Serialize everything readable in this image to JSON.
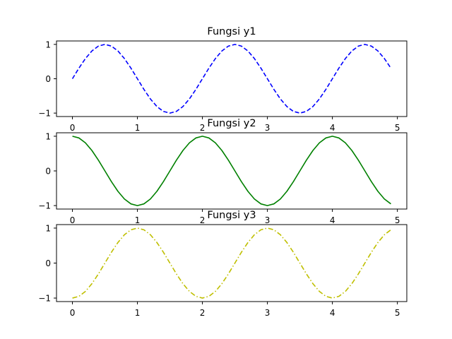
{
  "chart_data": [
    {
      "type": "line",
      "title": "Fungsi y1",
      "xlabel": "",
      "ylabel": "",
      "xlim": [
        -0.245,
        5.145
      ],
      "ylim": [
        -1.1,
        1.1
      ],
      "xticks": [
        0,
        1,
        2,
        3,
        4,
        5
      ],
      "yticks": [
        1,
        0,
        -1
      ],
      "xtick_labels": [
        "0",
        "1",
        "2",
        "3",
        "4",
        "5"
      ],
      "ytick_labels": [
        "1",
        "0",
        "−1"
      ],
      "grid": false,
      "series": [
        {
          "color": "#0000ff",
          "linestyle": "dashed",
          "x": [
            0,
            0.1,
            0.2,
            0.3,
            0.4,
            0.5,
            0.6,
            0.7,
            0.8,
            0.9,
            1,
            1.1,
            1.2,
            1.3,
            1.4,
            1.5,
            1.6,
            1.7,
            1.8,
            1.9,
            2,
            2.1,
            2.2,
            2.3,
            2.4,
            2.5,
            2.6,
            2.7,
            2.8,
            2.9,
            3,
            3.1,
            3.2,
            3.3,
            3.4,
            3.5,
            3.6,
            3.7,
            3.8,
            3.9,
            4,
            4.1,
            4.2,
            4.3,
            4.4,
            4.5,
            4.6,
            4.7,
            4.8,
            4.9
          ],
          "y": [
            0,
            0.309,
            0.588,
            0.809,
            0.951,
            1,
            0.951,
            0.809,
            0.588,
            0.309,
            0,
            -0.309,
            -0.588,
            -0.809,
            -0.951,
            -1,
            -0.951,
            -0.809,
            -0.588,
            -0.309,
            0,
            0.309,
            0.588,
            0.809,
            0.951,
            1,
            0.951,
            0.809,
            0.588,
            0.309,
            0,
            -0.309,
            -0.588,
            -0.809,
            -0.951,
            -1,
            -0.951,
            -0.809,
            -0.588,
            -0.309,
            0,
            0.309,
            0.588,
            0.809,
            0.951,
            1,
            0.951,
            0.809,
            0.588,
            0.309
          ]
        }
      ]
    },
    {
      "type": "line",
      "title": "Fungsi y2",
      "xlabel": "",
      "ylabel": "",
      "xlim": [
        -0.245,
        5.145
      ],
      "ylim": [
        -1.1,
        1.1
      ],
      "xticks": [
        0,
        1,
        2,
        3,
        4,
        5
      ],
      "yticks": [
        1,
        0,
        -1
      ],
      "xtick_labels": [
        "0",
        "1",
        "2",
        "3",
        "4",
        "5"
      ],
      "ytick_labels": [
        "1",
        "0",
        "−1"
      ],
      "grid": false,
      "series": [
        {
          "color": "#008000",
          "linestyle": "solid",
          "x": [
            0,
            0.1,
            0.2,
            0.3,
            0.4,
            0.5,
            0.6,
            0.7,
            0.8,
            0.9,
            1,
            1.1,
            1.2,
            1.3,
            1.4,
            1.5,
            1.6,
            1.7,
            1.8,
            1.9,
            2,
            2.1,
            2.2,
            2.3,
            2.4,
            2.5,
            2.6,
            2.7,
            2.8,
            2.9,
            3,
            3.1,
            3.2,
            3.3,
            3.4,
            3.5,
            3.6,
            3.7,
            3.8,
            3.9,
            4,
            4.1,
            4.2,
            4.3,
            4.4,
            4.5,
            4.6,
            4.7,
            4.8,
            4.9
          ],
          "y": [
            1,
            0.951,
            0.809,
            0.588,
            0.309,
            0,
            -0.309,
            -0.588,
            -0.809,
            -0.951,
            -1,
            -0.951,
            -0.809,
            -0.588,
            -0.309,
            0,
            0.309,
            0.588,
            0.809,
            0.951,
            1,
            0.951,
            0.809,
            0.588,
            0.309,
            0,
            -0.309,
            -0.588,
            -0.809,
            -0.951,
            -1,
            -0.951,
            -0.809,
            -0.588,
            -0.309,
            0,
            0.309,
            0.588,
            0.809,
            0.951,
            1,
            0.951,
            0.809,
            0.588,
            0.309,
            0,
            -0.309,
            -0.588,
            -0.809,
            -0.951
          ]
        }
      ]
    },
    {
      "type": "line",
      "title": "Fungsi y3",
      "xlabel": "",
      "ylabel": "",
      "xlim": [
        -0.245,
        5.145
      ],
      "ylim": [
        -1.1,
        1.1
      ],
      "xticks": [
        0,
        1,
        2,
        3,
        4,
        5
      ],
      "yticks": [
        1,
        0,
        -1
      ],
      "xtick_labels": [
        "0",
        "1",
        "2",
        "3",
        "4",
        "5"
      ],
      "ytick_labels": [
        "1",
        "0",
        "−1"
      ],
      "grid": false,
      "series": [
        {
          "color": "#bfbf00",
          "linestyle": "dashdot",
          "x": [
            0,
            0.1,
            0.2,
            0.3,
            0.4,
            0.5,
            0.6,
            0.7,
            0.8,
            0.9,
            1,
            1.1,
            1.2,
            1.3,
            1.4,
            1.5,
            1.6,
            1.7,
            1.8,
            1.9,
            2,
            2.1,
            2.2,
            2.3,
            2.4,
            2.5,
            2.6,
            2.7,
            2.8,
            2.9,
            3,
            3.1,
            3.2,
            3.3,
            3.4,
            3.5,
            3.6,
            3.7,
            3.8,
            3.9,
            4,
            4.1,
            4.2,
            4.3,
            4.4,
            4.5,
            4.6,
            4.7,
            4.8,
            4.9
          ],
          "y": [
            -1,
            -0.951,
            -0.809,
            -0.588,
            -0.309,
            0,
            0.309,
            0.588,
            0.809,
            0.951,
            1,
            0.951,
            0.809,
            0.588,
            0.309,
            0,
            -0.309,
            -0.588,
            -0.809,
            -0.951,
            -1,
            -0.951,
            -0.809,
            -0.588,
            -0.309,
            0,
            0.309,
            0.588,
            0.809,
            0.951,
            1,
            0.951,
            0.809,
            0.588,
            0.309,
            0,
            -0.309,
            -0.588,
            -0.809,
            -0.951,
            -1,
            -0.951,
            -0.809,
            -0.588,
            -0.309,
            0,
            0.309,
            0.588,
            0.809,
            0.951
          ]
        }
      ]
    }
  ]
}
